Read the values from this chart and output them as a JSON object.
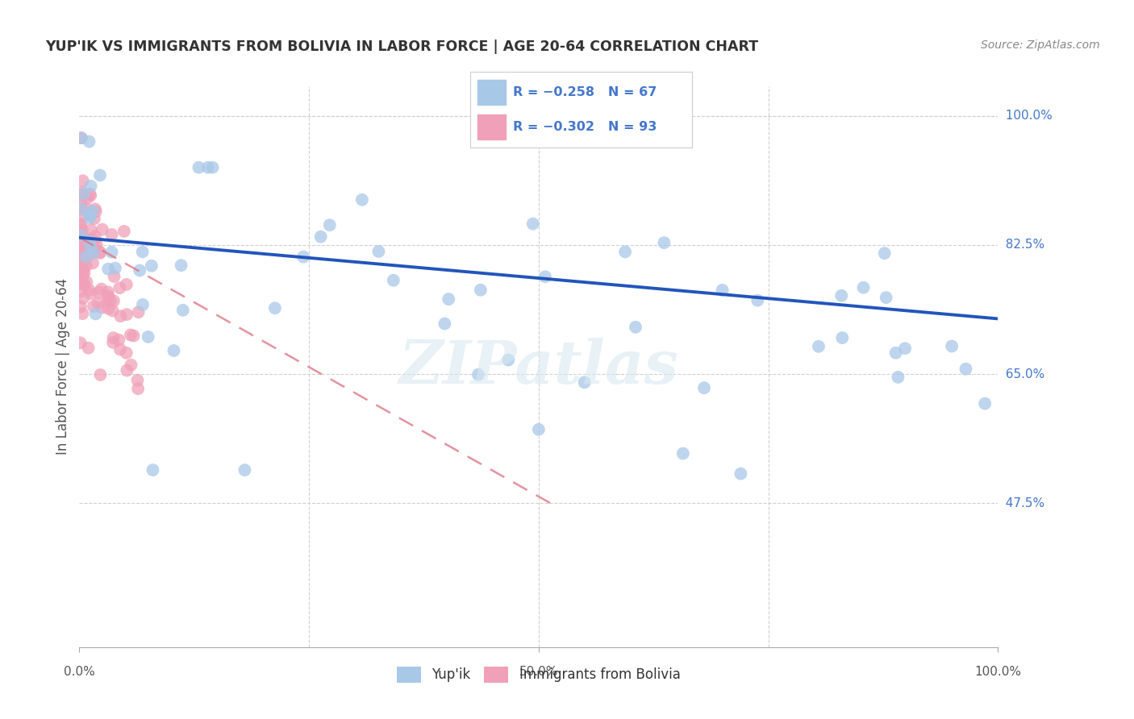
{
  "title": "YUP'IK VS IMMIGRANTS FROM BOLIVIA IN LABOR FORCE | AGE 20-64 CORRELATION CHART",
  "source": "Source: ZipAtlas.com",
  "ylabel": "In Labor Force | Age 20-64",
  "xlim": [
    0.0,
    1.0
  ],
  "ylim": [
    0.28,
    1.04
  ],
  "yticks": [
    0.475,
    0.65,
    0.825,
    1.0
  ],
  "yticklabels": [
    "47.5%",
    "65.0%",
    "82.5%",
    "100.0%"
  ],
  "xtick_left_label": "0.0%",
  "xtick_right_label": "100.0%",
  "xtick_mid_label": "50.0%",
  "grid_color": "#d0d0d0",
  "background_color": "#ffffff",
  "watermark": "ZIPatlas",
  "legend_R1": "R = −0.258",
  "legend_N1": "N = 67",
  "legend_R2": "R = −0.302",
  "legend_N2": "N = 93",
  "series1_color": "#a8c8e8",
  "series2_color": "#f0a0b8",
  "series1_edge": "#88aacc",
  "series2_edge": "#dd8899",
  "trendline1_color": "#2255bb",
  "trendline2_color": "#dd7788",
  "series1_name": "Yup'ik",
  "series2_name": "Immigrants from Bolivia",
  "tick_color": "#4477cc",
  "title_color": "#333333",
  "source_color": "#888888",
  "ylabel_color": "#555555",
  "trendline1_start_y": 0.835,
  "trendline1_end_y": 0.725,
  "trendline1_start_x": 0.0,
  "trendline1_end_x": 1.0,
  "trendline2_start_y": 0.835,
  "trendline2_end_y": 0.47,
  "trendline2_start_x": 0.0,
  "trendline2_end_x": 0.52
}
